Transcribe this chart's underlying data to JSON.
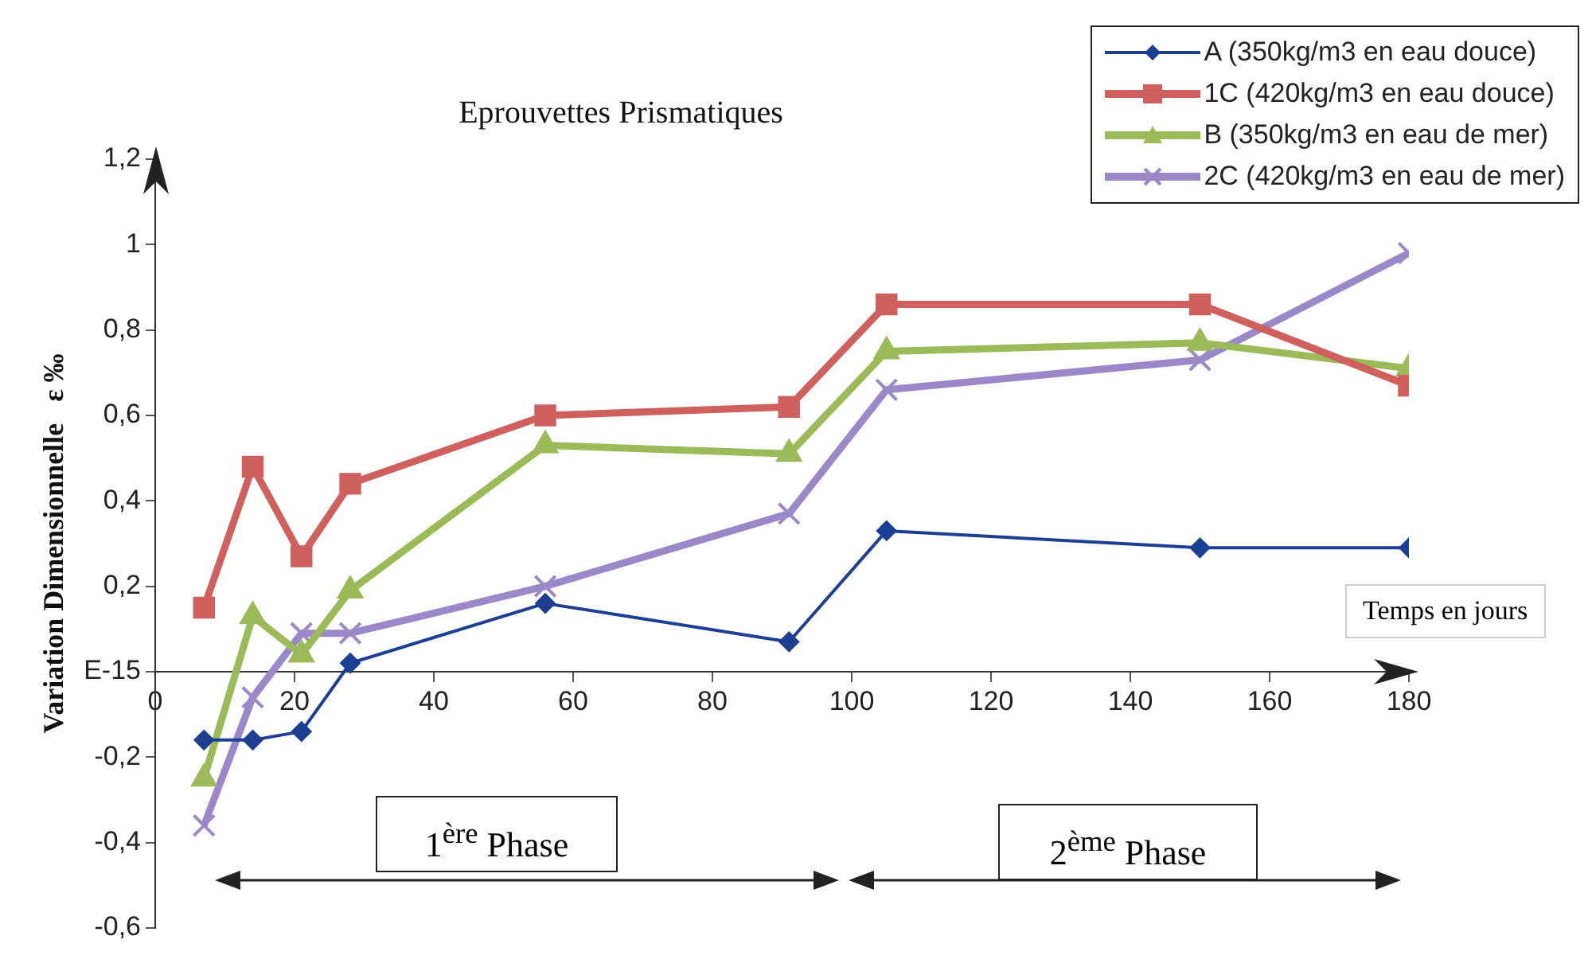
{
  "chart_data": {
    "type": "line",
    "title": "Eprouvettes Prismatiques",
    "xlabel": "Temps en jours",
    "ylabel": "Variation Dimensionnelle   ε ‰",
    "annotations": [
      "1$^{ère}$ Phase",
      "2$^{ème}$ Phase"
    ],
    "x": [
      7,
      14,
      21,
      28,
      56,
      91,
      105,
      150,
      180
    ],
    "series": [
      {
        "name": "A (350kg/m3 en eau douce)",
        "color": "#1c3f94",
        "marker": "diamond",
        "values": [
          -0.16,
          -0.16,
          -0.14,
          0.02,
          0.16,
          0.07,
          0.33,
          0.29,
          0.29
        ]
      },
      {
        "name": "1C (420kg/m3 en eau douce)",
        "color": "#d0605e",
        "marker": "square",
        "values": [
          0.15,
          0.48,
          0.27,
          0.44,
          0.6,
          0.62,
          0.86,
          0.86,
          0.67
        ]
      },
      {
        "name": "B (350kg/m3 en eau de mer)",
        "color": "#9bbb59",
        "marker": "triangle",
        "values": [
          -0.25,
          0.13,
          0.04,
          0.19,
          0.53,
          0.51,
          0.75,
          0.77,
          0.71
        ]
      },
      {
        "name": "2C (420kg/m3 en eau de mer)",
        "color": "#9a88c8",
        "marker": "cross",
        "values": [
          -0.36,
          -0.06,
          0.09,
          0.09,
          0.2,
          0.37,
          0.66,
          0.73,
          0.98
        ]
      }
    ],
    "xlim": [
      0,
      180
    ],
    "xticks": [
      0,
      20,
      40,
      60,
      80,
      100,
      120,
      140,
      160,
      180
    ],
    "ylim": [
      -0.6,
      1.2
    ],
    "yticks": [
      {
        "value": -0.6,
        "label": "-0,6"
      },
      {
        "value": -0.4,
        "label": "-0,4"
      },
      {
        "value": -0.2,
        "label": "-0,2"
      },
      {
        "value": 0,
        "label": "E-15"
      },
      {
        "value": 0.2,
        "label": "0,2"
      },
      {
        "value": 0.4,
        "label": "0,4"
      },
      {
        "value": 0.6,
        "label": "0,6"
      },
      {
        "value": 0.8,
        "label": "0,8"
      },
      {
        "value": 1,
        "label": "1"
      },
      {
        "value": 1.2,
        "label": "1,2"
      }
    ],
    "grid": false,
    "legend": "top right",
    "line_style": "solid"
  }
}
